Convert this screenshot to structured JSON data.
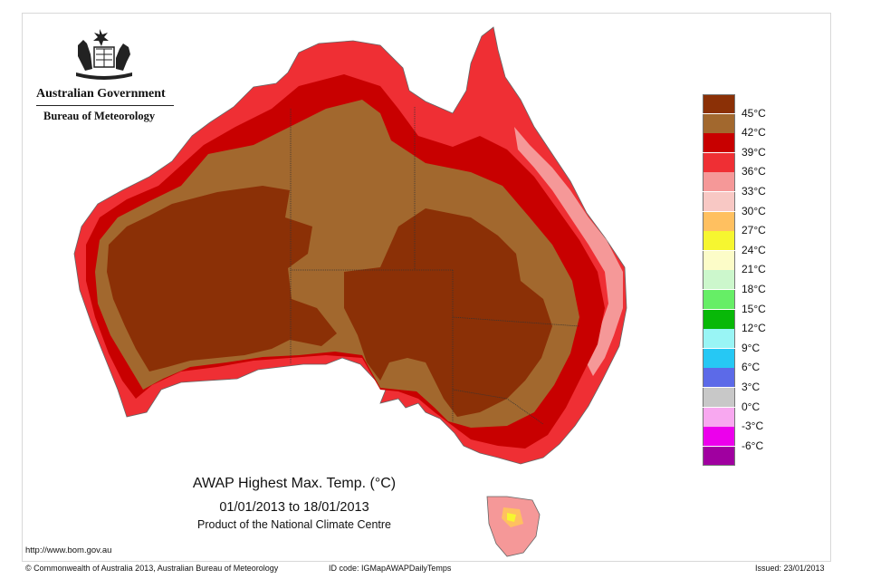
{
  "header": {
    "agency": "Australian Government",
    "bureau": "Bureau of Meteorology",
    "crest_icon": "commonwealth-coat-of-arms"
  },
  "map": {
    "title": "AWAP Highest Max. Temp. (°C)",
    "date_range": "01/01/2013 to 18/01/2013",
    "product": "Product of the National Climate Centre"
  },
  "legend": [
    {
      "label": "45°C",
      "color": "#8B3006"
    },
    {
      "label": "42°C",
      "color": "#A2682E"
    },
    {
      "label": "39°C",
      "color": "#C80000"
    },
    {
      "label": "36°C",
      "color": "#EF2F34"
    },
    {
      "label": "33°C",
      "color": "#F59898"
    },
    {
      "label": "30°C",
      "color": "#F8C8C4"
    },
    {
      "label": "27°C",
      "color": "#FFC060"
    },
    {
      "label": "24°C",
      "color": "#F6F630"
    },
    {
      "label": "21°C",
      "color": "#FCFCC8"
    },
    {
      "label": "18°C",
      "color": "#CCF7CC"
    },
    {
      "label": "15°C",
      "color": "#66EE66"
    },
    {
      "label": "12°C",
      "color": "#08B808"
    },
    {
      "label": "9°C",
      "color": "#99F5F5"
    },
    {
      "label": "6°C",
      "color": "#26C8F4"
    },
    {
      "label": "3°C",
      "color": "#5C6AE8"
    },
    {
      "label": "0°C",
      "color": "#C8C8C8"
    },
    {
      "label": "-3°C",
      "color": "#F8A8F0"
    },
    {
      "label": "-6°C",
      "color": "#EC00EC"
    },
    {
      "label": "",
      "color": "#A000A0"
    }
  ],
  "footer": {
    "url": "http://www.bom.gov.au",
    "copyright": "© Commonwealth of Australia 2013, Australian Bureau of Meteorology",
    "id_code": "ID code: IGMapAWAPDailyTemps",
    "issued": "Issued: 23/01/2013"
  }
}
